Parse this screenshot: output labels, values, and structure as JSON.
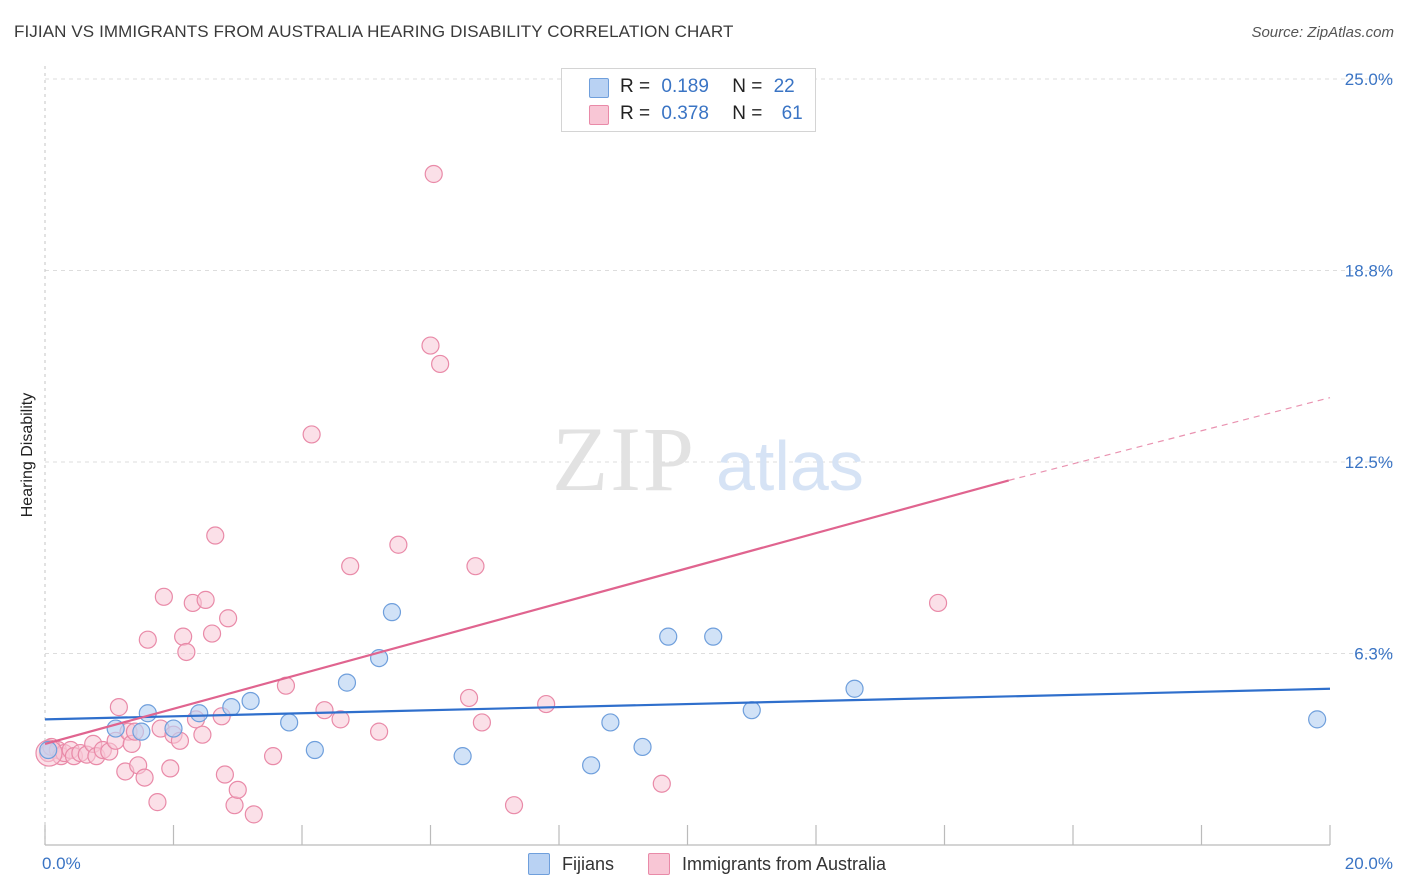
{
  "title": "FIJIAN VS IMMIGRANTS FROM AUSTRALIA HEARING DISABILITY CORRELATION CHART",
  "source": "Source: ZipAtlas.com",
  "watermark": {
    "zip": "ZIP",
    "atlas": "atlas"
  },
  "legend": {
    "rows": [
      {
        "r_label": "R =",
        "r_value": "0.189",
        "n_label": "N =",
        "n_value": "22",
        "fill": "#b9d2f3",
        "stroke": "#6f9fdc"
      },
      {
        "r_label": "R =",
        "r_value": "0.378",
        "n_label": "N =",
        "n_value": "61",
        "fill": "#f8c6d5",
        "stroke": "#e98aa8"
      }
    ]
  },
  "bottom_legend": {
    "fijians": "Fijians",
    "immigrants": "Immigrants from Australia"
  },
  "colors": {
    "blue": "#3a74c4",
    "blue_line": "#2f6fcc",
    "pink_line": "#e0648f",
    "blue_fill": "#b9d2f3",
    "pink_fill": "#f8c6d5",
    "grid": "#dddddd"
  },
  "chart_data": {
    "type": "scatter",
    "title": "FIJIAN VS IMMIGRANTS FROM AUSTRALIA HEARING DISABILITY CORRELATION CHART",
    "ylabel": "Hearing Disability",
    "xlabel": "",
    "x_tick_labels": [
      "0.0%",
      "20.0%"
    ],
    "y_tick_labels": [
      "25.0%",
      "18.8%",
      "12.5%",
      "6.3%"
    ],
    "y_ticks": [
      25.0,
      18.75,
      12.5,
      6.25
    ],
    "xlim": [
      0,
      20
    ],
    "ylim": [
      0,
      25.0
    ],
    "grid": true,
    "legend_position": "top-center",
    "series": [
      {
        "name": "Fijians",
        "r": 0.189,
        "n": 22,
        "points": [
          [
            0.05,
            3.1
          ],
          [
            1.1,
            3.8
          ],
          [
            1.5,
            3.7
          ],
          [
            1.6,
            4.3
          ],
          [
            2.0,
            3.8
          ],
          [
            2.4,
            4.3
          ],
          [
            2.9,
            4.5
          ],
          [
            3.2,
            4.7
          ],
          [
            3.8,
            4.0
          ],
          [
            4.2,
            3.1
          ],
          [
            4.7,
            5.3
          ],
          [
            5.2,
            6.1
          ],
          [
            5.4,
            7.6
          ],
          [
            6.5,
            2.9
          ],
          [
            8.5,
            2.6
          ],
          [
            8.8,
            4.0
          ],
          [
            9.3,
            3.2
          ],
          [
            9.7,
            6.8
          ],
          [
            10.4,
            6.8
          ],
          [
            11.0,
            4.4
          ],
          [
            12.6,
            5.1
          ],
          [
            19.8,
            4.1
          ]
        ],
        "trend": {
          "x": [
            0,
            20
          ],
          "y": [
            4.1,
            5.1
          ]
        }
      },
      {
        "name": "Immigrants from Australia",
        "r": 0.378,
        "n": 61,
        "points": [
          [
            0.05,
            3.0
          ],
          [
            0.1,
            3.2
          ],
          [
            0.2,
            3.1
          ],
          [
            0.25,
            2.9
          ],
          [
            0.3,
            3.0
          ],
          [
            0.4,
            3.1
          ],
          [
            0.45,
            2.9
          ],
          [
            0.55,
            3.0
          ],
          [
            0.65,
            2.95
          ],
          [
            0.75,
            3.3
          ],
          [
            0.8,
            2.9
          ],
          [
            0.9,
            3.1
          ],
          [
            1.0,
            3.05
          ],
          [
            1.1,
            3.4
          ],
          [
            1.15,
            4.5
          ],
          [
            1.25,
            2.4
          ],
          [
            1.3,
            3.7
          ],
          [
            1.35,
            3.3
          ],
          [
            1.4,
            3.7
          ],
          [
            1.45,
            2.6
          ],
          [
            1.55,
            2.2
          ],
          [
            1.6,
            6.7
          ],
          [
            1.75,
            1.4
          ],
          [
            1.8,
            3.8
          ],
          [
            1.85,
            8.1
          ],
          [
            1.95,
            2.5
          ],
          [
            2.0,
            3.6
          ],
          [
            2.1,
            3.4
          ],
          [
            2.15,
            6.8
          ],
          [
            2.2,
            6.3
          ],
          [
            2.3,
            7.9
          ],
          [
            2.35,
            4.1
          ],
          [
            2.45,
            3.6
          ],
          [
            2.5,
            8.0
          ],
          [
            2.6,
            6.9
          ],
          [
            2.65,
            10.1
          ],
          [
            2.75,
            4.2
          ],
          [
            2.8,
            2.3
          ],
          [
            2.85,
            7.4
          ],
          [
            2.95,
            1.3
          ],
          [
            3.0,
            1.8
          ],
          [
            3.25,
            1.0
          ],
          [
            3.55,
            2.9
          ],
          [
            3.75,
            5.2
          ],
          [
            4.15,
            13.4
          ],
          [
            4.35,
            4.4
          ],
          [
            4.6,
            4.1
          ],
          [
            4.75,
            9.1
          ],
          [
            5.2,
            3.7
          ],
          [
            5.5,
            9.8
          ],
          [
            6.0,
            16.3
          ],
          [
            6.05,
            21.9
          ],
          [
            6.15,
            15.7
          ],
          [
            6.6,
            4.8
          ],
          [
            6.7,
            9.1
          ],
          [
            6.8,
            4.0
          ],
          [
            7.3,
            1.3
          ],
          [
            7.8,
            4.6
          ],
          [
            9.6,
            2.0
          ],
          [
            13.9,
            7.9
          ],
          [
            0.0,
            3.0
          ]
        ],
        "trend_solid": {
          "x": [
            0,
            15
          ],
          "y": [
            3.3,
            11.9
          ]
        },
        "trend_dashed": {
          "x": [
            15,
            20
          ],
          "y": [
            11.9,
            14.6
          ]
        }
      }
    ]
  }
}
